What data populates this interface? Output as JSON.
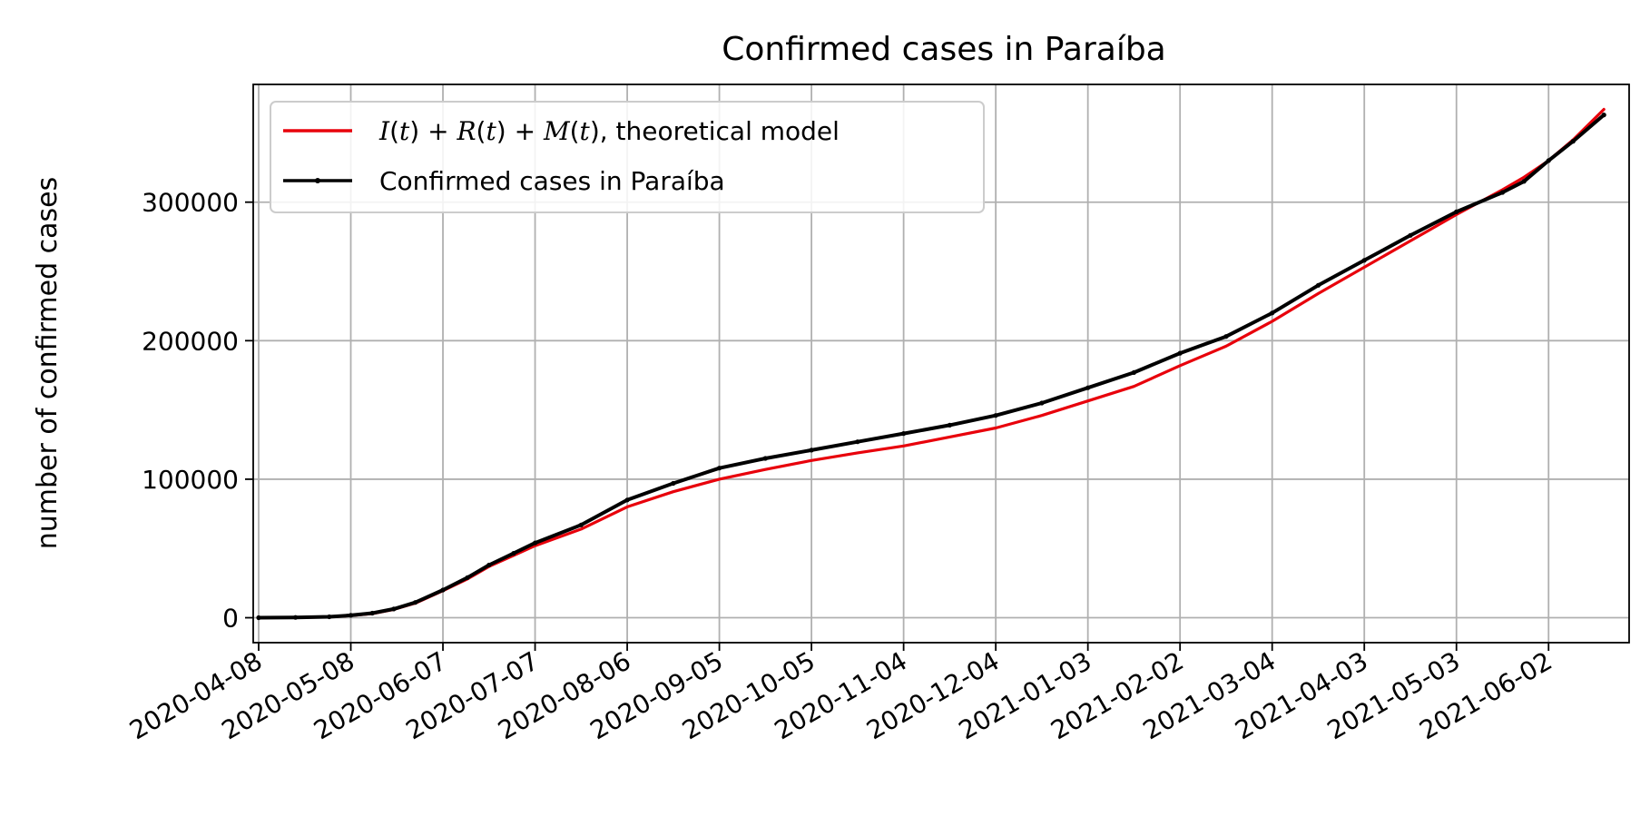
{
  "chart_data": {
    "type": "line",
    "title": "Confirmed cases in Paraíba",
    "xlabel": "",
    "ylabel": "number of confirmed cases",
    "x_type": "date",
    "xlim": [
      "2020-04-08",
      "2021-06-30"
    ],
    "ylim": [
      -18000,
      385000
    ],
    "grid": true,
    "legend_position": "top-left",
    "x_ticks": [
      "2020-04-08",
      "2020-05-08",
      "2020-06-07",
      "2020-07-07",
      "2020-08-06",
      "2020-09-05",
      "2020-10-05",
      "2020-11-04",
      "2020-12-04",
      "2021-01-03",
      "2021-02-02",
      "2021-03-04",
      "2021-04-03",
      "2021-05-03",
      "2021-06-02"
    ],
    "y_ticks": [
      0,
      100000,
      200000,
      300000
    ],
    "y_tick_labels": [
      "0",
      "100000",
      "200000",
      "300000"
    ],
    "series": [
      {
        "name": "I(t) + R(t) + M(t), theoretical model",
        "legend_label": {
          "I": "I",
          "R": "R",
          "M": "M",
          "t": "t",
          "suffix": ", theoretical model"
        },
        "color": "#e8000b",
        "marker": false,
        "points": [
          [
            "2020-04-08",
            0
          ],
          [
            "2020-04-20",
            150
          ],
          [
            "2020-05-01",
            600
          ],
          [
            "2020-05-08",
            1500
          ],
          [
            "2020-05-15",
            3000
          ],
          [
            "2020-05-22",
            6000
          ],
          [
            "2020-05-29",
            10500
          ],
          [
            "2020-06-07",
            19500
          ],
          [
            "2020-06-15",
            28000
          ],
          [
            "2020-06-22",
            37000
          ],
          [
            "2020-06-30",
            45000
          ],
          [
            "2020-07-07",
            52000
          ],
          [
            "2020-07-22",
            64000
          ],
          [
            "2020-08-06",
            80000
          ],
          [
            "2020-08-21",
            91000
          ],
          [
            "2020-09-05",
            100000
          ],
          [
            "2020-09-20",
            107000
          ],
          [
            "2020-10-05",
            113500
          ],
          [
            "2020-10-20",
            119000
          ],
          [
            "2020-11-04",
            124000
          ],
          [
            "2020-11-19",
            130500
          ],
          [
            "2020-12-04",
            137000
          ],
          [
            "2020-12-19",
            146000
          ],
          [
            "2021-01-03",
            156500
          ],
          [
            "2021-01-18",
            167000
          ],
          [
            "2021-02-02",
            182000
          ],
          [
            "2021-02-17",
            196000
          ],
          [
            "2021-03-04",
            214000
          ],
          [
            "2021-03-19",
            234000
          ],
          [
            "2021-04-03",
            253000
          ],
          [
            "2021-04-18",
            272000
          ],
          [
            "2021-05-03",
            291000
          ],
          [
            "2021-05-18",
            309000
          ],
          [
            "2021-05-25",
            318000
          ],
          [
            "2021-06-02",
            330000
          ],
          [
            "2021-06-10",
            345000
          ],
          [
            "2021-06-20",
            367000
          ]
        ]
      },
      {
        "name": "Confirmed cases in Paraíba",
        "color": "#000000",
        "marker": true,
        "points": [
          [
            "2020-04-08",
            0
          ],
          [
            "2020-04-20",
            200
          ],
          [
            "2020-05-01",
            700
          ],
          [
            "2020-05-08",
            1700
          ],
          [
            "2020-05-15",
            3300
          ],
          [
            "2020-05-22",
            6300
          ],
          [
            "2020-05-29",
            11000
          ],
          [
            "2020-06-07",
            20000
          ],
          [
            "2020-06-15",
            29000
          ],
          [
            "2020-06-22",
            38000
          ],
          [
            "2020-06-30",
            46500
          ],
          [
            "2020-07-07",
            54000
          ],
          [
            "2020-07-22",
            67000
          ],
          [
            "2020-08-06",
            85000
          ],
          [
            "2020-08-21",
            97000
          ],
          [
            "2020-09-05",
            108000
          ],
          [
            "2020-09-20",
            115000
          ],
          [
            "2020-10-05",
            121000
          ],
          [
            "2020-10-20",
            127000
          ],
          [
            "2020-11-04",
            133000
          ],
          [
            "2020-11-19",
            139000
          ],
          [
            "2020-12-04",
            146000
          ],
          [
            "2020-12-19",
            155000
          ],
          [
            "2021-01-03",
            166000
          ],
          [
            "2021-01-18",
            177000
          ],
          [
            "2021-02-02",
            191000
          ],
          [
            "2021-02-17",
            203000
          ],
          [
            "2021-03-04",
            220000
          ],
          [
            "2021-03-19",
            240000
          ],
          [
            "2021-04-03",
            258000
          ],
          [
            "2021-04-18",
            276000
          ],
          [
            "2021-05-03",
            293000
          ],
          [
            "2021-05-18",
            307000
          ],
          [
            "2021-05-25",
            315000
          ],
          [
            "2021-06-02",
            330000
          ],
          [
            "2021-06-10",
            344000
          ],
          [
            "2021-06-20",
            363000
          ]
        ]
      }
    ]
  }
}
